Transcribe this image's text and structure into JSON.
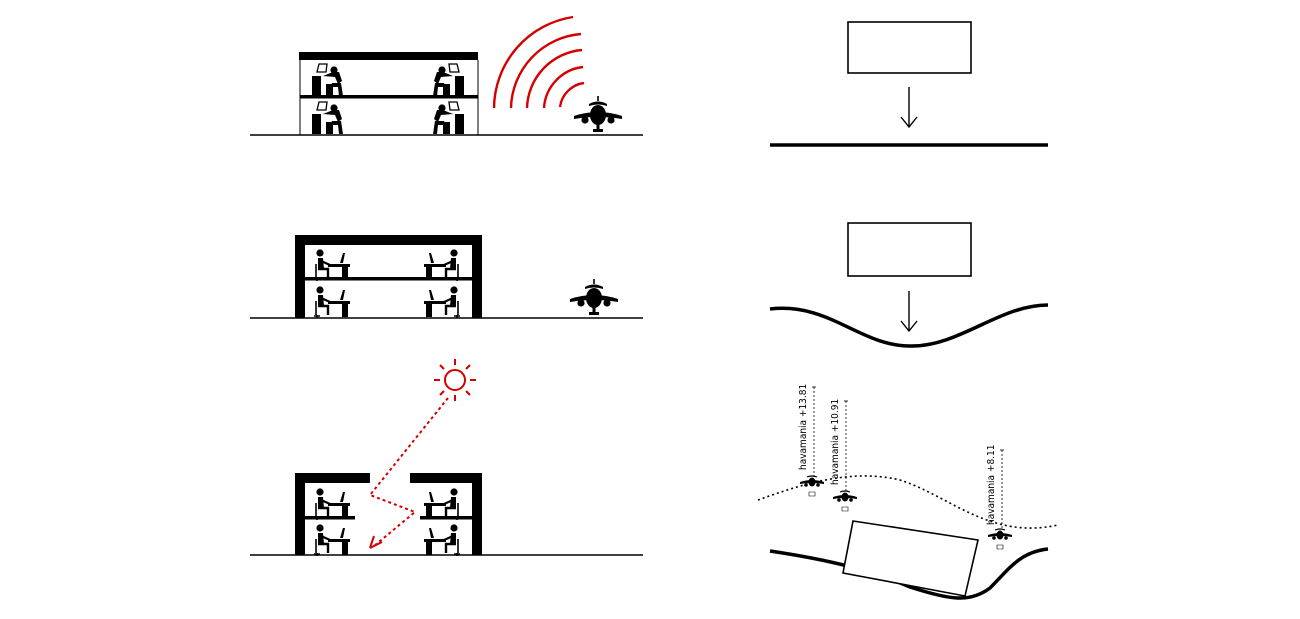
{
  "colors": {
    "ink": "#000000",
    "accent": "#d40000",
    "background": "#ffffff"
  },
  "icons": [
    "worker-at-desk-icon",
    "airplane-icon",
    "sun-icon",
    "noise-wave-icon",
    "down-arrow-icon"
  ],
  "height_labels": {
    "label_1": "havamania +13.81",
    "label_2": "havamania +10.91",
    "label_3": "havamania +8.11"
  }
}
